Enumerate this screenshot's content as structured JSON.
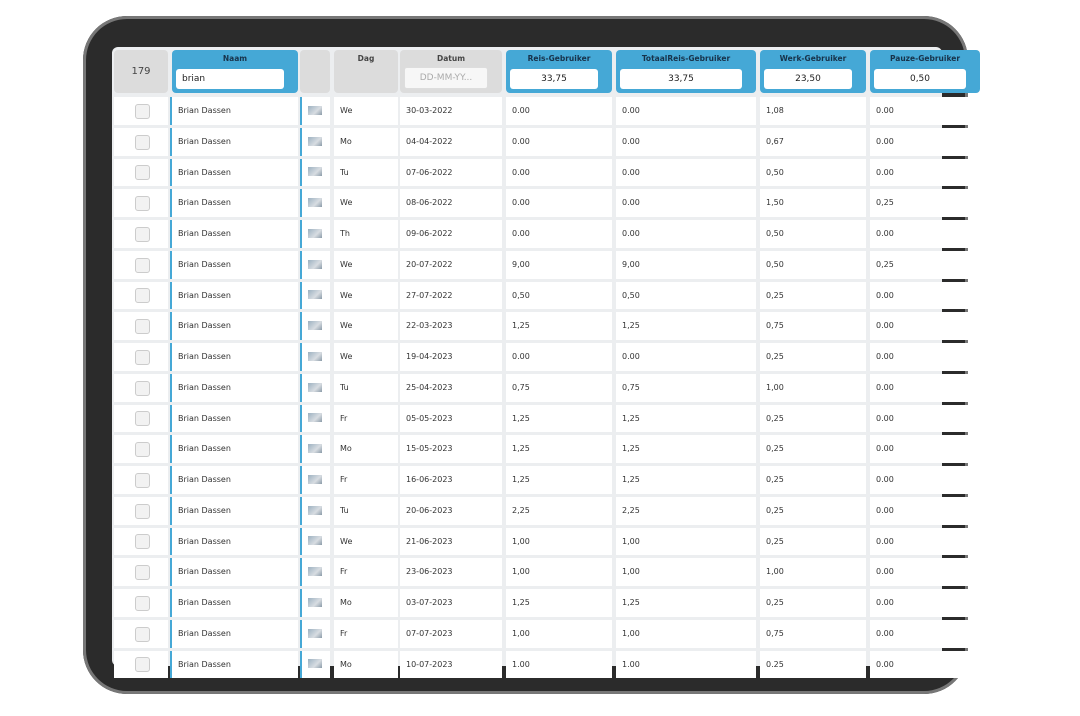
{
  "header": {
    "count": "179",
    "columns": [
      "Naam",
      "Dag",
      "Datum",
      "Reis-Gebruiker",
      "TotaalReis-Gebruiker",
      "Werk-Gebruiker",
      "Pauze-Gebruiker"
    ],
    "filters": {
      "naam": "brian",
      "datum": "DD-MM-YY...",
      "reis": "33,75",
      "totaalreis": "33,75",
      "werk": "23,50",
      "pauze": "0,50"
    }
  },
  "table": {
    "rows": [
      [
        "Brian Dassen",
        "We",
        "30-03-2022",
        "0.00",
        "0.00",
        "1,08",
        "0.00"
      ],
      [
        "Brian Dassen",
        "Mo",
        "04-04-2022",
        "0.00",
        "0.00",
        "0,67",
        "0.00"
      ],
      [
        "Brian Dassen",
        "Tu",
        "07-06-2022",
        "0.00",
        "0.00",
        "0,50",
        "0.00"
      ],
      [
        "Brian Dassen",
        "We",
        "08-06-2022",
        "0.00",
        "0.00",
        "1,50",
        "0,25"
      ],
      [
        "Brian Dassen",
        "Th",
        "09-06-2022",
        "0.00",
        "0.00",
        "0,50",
        "0.00"
      ],
      [
        "Brian Dassen",
        "We",
        "20-07-2022",
        "9,00",
        "9,00",
        "0,50",
        "0,25"
      ],
      [
        "Brian Dassen",
        "We",
        "27-07-2022",
        "0,50",
        "0,50",
        "0,25",
        "0.00"
      ],
      [
        "Brian Dassen",
        "We",
        "22-03-2023",
        "1,25",
        "1,25",
        "0,75",
        "0.00"
      ],
      [
        "Brian Dassen",
        "We",
        "19-04-2023",
        "0.00",
        "0.00",
        "0,25",
        "0.00"
      ],
      [
        "Brian Dassen",
        "Tu",
        "25-04-2023",
        "0,75",
        "0,75",
        "1,00",
        "0.00"
      ],
      [
        "Brian Dassen",
        "Fr",
        "05-05-2023",
        "1,25",
        "1,25",
        "0,25",
        "0.00"
      ],
      [
        "Brian Dassen",
        "Mo",
        "15-05-2023",
        "1,25",
        "1,25",
        "0,25",
        "0.00"
      ],
      [
        "Brian Dassen",
        "Fr",
        "16-06-2023",
        "1,25",
        "1,25",
        "0,25",
        "0.00"
      ],
      [
        "Brian Dassen",
        "Tu",
        "20-06-2023",
        "2,25",
        "2,25",
        "0,25",
        "0.00"
      ],
      [
        "Brian Dassen",
        "We",
        "21-06-2023",
        "1,00",
        "1,00",
        "0,25",
        "0.00"
      ],
      [
        "Brian Dassen",
        "Fr",
        "23-06-2023",
        "1,00",
        "1,00",
        "1,00",
        "0.00"
      ],
      [
        "Brian Dassen",
        "Mo",
        "03-07-2023",
        "1,25",
        "1,25",
        "0,25",
        "0.00"
      ],
      [
        "Brian Dassen",
        "Fr",
        "07-07-2023",
        "1,00",
        "1,00",
        "0,75",
        "0.00"
      ],
      [
        "Brian Dassen",
        "Mo",
        "10-07-2023",
        "1.00",
        "1.00",
        "0.25",
        "0.00"
      ]
    ]
  }
}
